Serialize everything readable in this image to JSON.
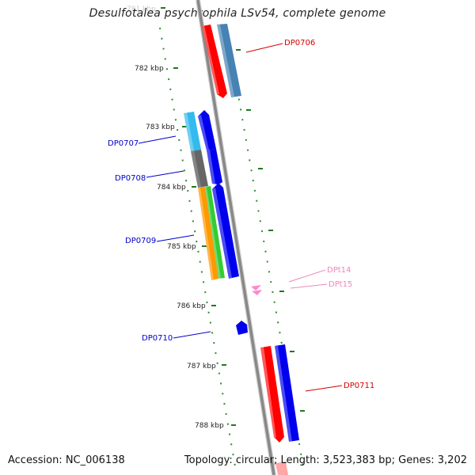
{
  "title": "Desulfotalea psychrophila LSv54, complete genome",
  "footer": {
    "accession": "Accession: NC_006138",
    "summary": "Topology: circular; Length: 3,523,383 bp; Genes: 3,202"
  },
  "ticks": [
    {
      "label": "781 kbp",
      "faint": true
    },
    {
      "label": "782 kbp"
    },
    {
      "label": "783 kbp"
    },
    {
      "label": "784 kbp"
    },
    {
      "label": "785 kbp"
    },
    {
      "label": "786 kbp"
    },
    {
      "label": "787 kbp"
    },
    {
      "label": "788 kbp"
    }
  ],
  "genes": [
    {
      "id": "DP0706",
      "color": "#d40000"
    },
    {
      "id": "DP0707",
      "color": "#0000cc"
    },
    {
      "id": "DP0708",
      "color": "#0000cc"
    },
    {
      "id": "DP0709",
      "color": "#0000cc"
    },
    {
      "id": "DP0710",
      "color": "#0000cc"
    },
    {
      "id": "DPt14",
      "color": "#ee88bb"
    },
    {
      "id": "DPt15",
      "color": "#ee88bb"
    },
    {
      "id": "DP0711",
      "color": "#d40000"
    }
  ],
  "colors": {
    "backbone": "#888888",
    "tick_dots": "#2e8b2e",
    "cds_red": "#ff0000",
    "cds_blue": "#0000ee",
    "cog_steelblue": "#4682b4",
    "cog_cyan": "#33bbee",
    "cog_gray": "#666666",
    "cog_orange": "#ff9900",
    "cog_green": "#33cc33",
    "trna_pink": "#ff88cc"
  }
}
